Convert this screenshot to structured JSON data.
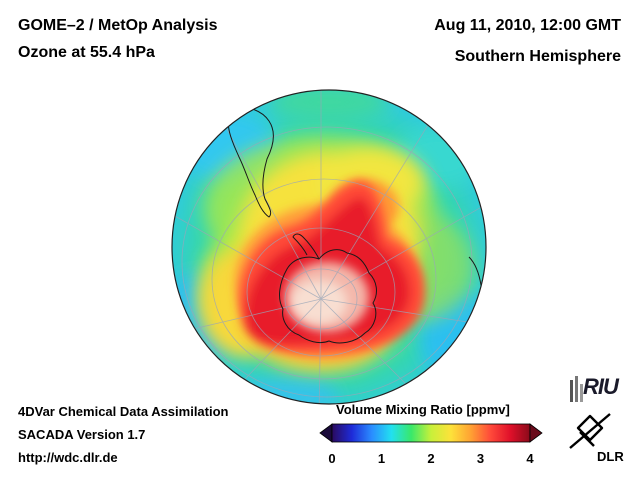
{
  "header": {
    "title": "GOME–2 / MetOp Analysis",
    "subtitle": "Ozone at 55.4 hPa",
    "datetime": "Aug 11, 2010, 12:00 GMT",
    "region": "Southern Hemisphere"
  },
  "footer": {
    "line1": "4DVar Chemical Data Assimilation",
    "line2": "SACADA Version 1.7",
    "line3": "http://wdc.dlr.de"
  },
  "colorbar": {
    "title": "Volume Mixing Ratio [ppmv]",
    "ticks": [
      "0",
      "1",
      "2",
      "3",
      "4"
    ],
    "min": 0,
    "max": 4,
    "colors": [
      "#2a0a5e",
      "#1e2bd8",
      "#2a8cff",
      "#22e0f0",
      "#39e86a",
      "#c8f03a",
      "#fde23a",
      "#ffa233",
      "#ff4a3a",
      "#e0102a",
      "#8a0a1a"
    ]
  },
  "logos": {
    "riu": "RIU",
    "dlr": "DLR"
  },
  "map": {
    "projection": "orthographic",
    "center": "South Pole",
    "variable": "ozone",
    "units": "ppmv"
  },
  "colors": {
    "background": "#ffffff",
    "text": "#000000"
  }
}
